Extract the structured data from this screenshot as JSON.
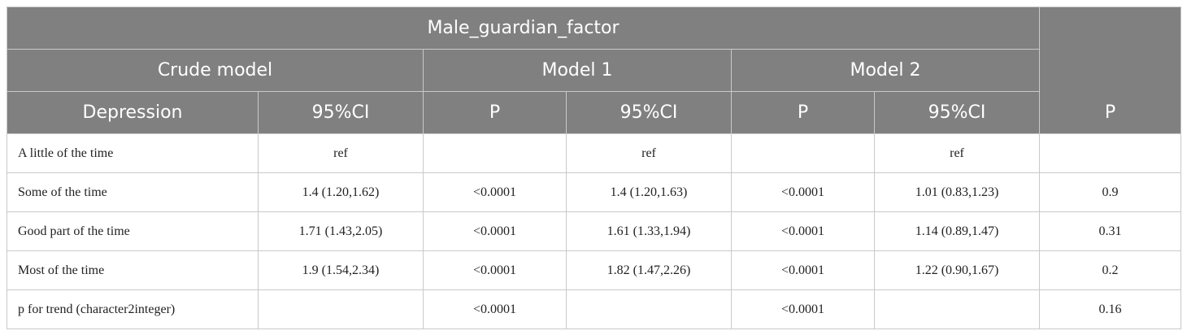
{
  "header": {
    "title": "Male_guardian_factor",
    "groups": [
      "Crude model",
      "Model 1",
      "Model 2"
    ],
    "columns": [
      "Depression",
      "95%CI",
      "P",
      "95%CI",
      "P",
      "95%CI"
    ],
    "last_column": "P"
  },
  "table": {
    "rows": [
      [
        "A little of the time",
        "ref",
        null,
        "ref",
        null,
        "ref",
        null
      ],
      [
        "Some of the time",
        "1.4 (1.20,1.62)",
        "<0.0001",
        "1.4 (1.20,1.63)",
        "<0.0001",
        "1.01 (0.83,1.23)",
        "0.9"
      ],
      [
        "Good part of the time",
        "1.71 (1.43,2.05)",
        "<0.0001",
        "1.61 (1.33,1.94)",
        "<0.0001",
        "1.14 (0.89,1.47)",
        "0.31"
      ],
      [
        "Most of the time",
        "1.9 (1.54,2.34)",
        "<0.0001",
        "1.82 (1.47,2.26)",
        "<0.0001",
        "1.22 (0.90,1.67)",
        "0.2"
      ],
      [
        "p for trend (character2integer)",
        null,
        "<0.0001",
        null,
        "<0.0001",
        null,
        "0.16"
      ]
    ]
  }
}
